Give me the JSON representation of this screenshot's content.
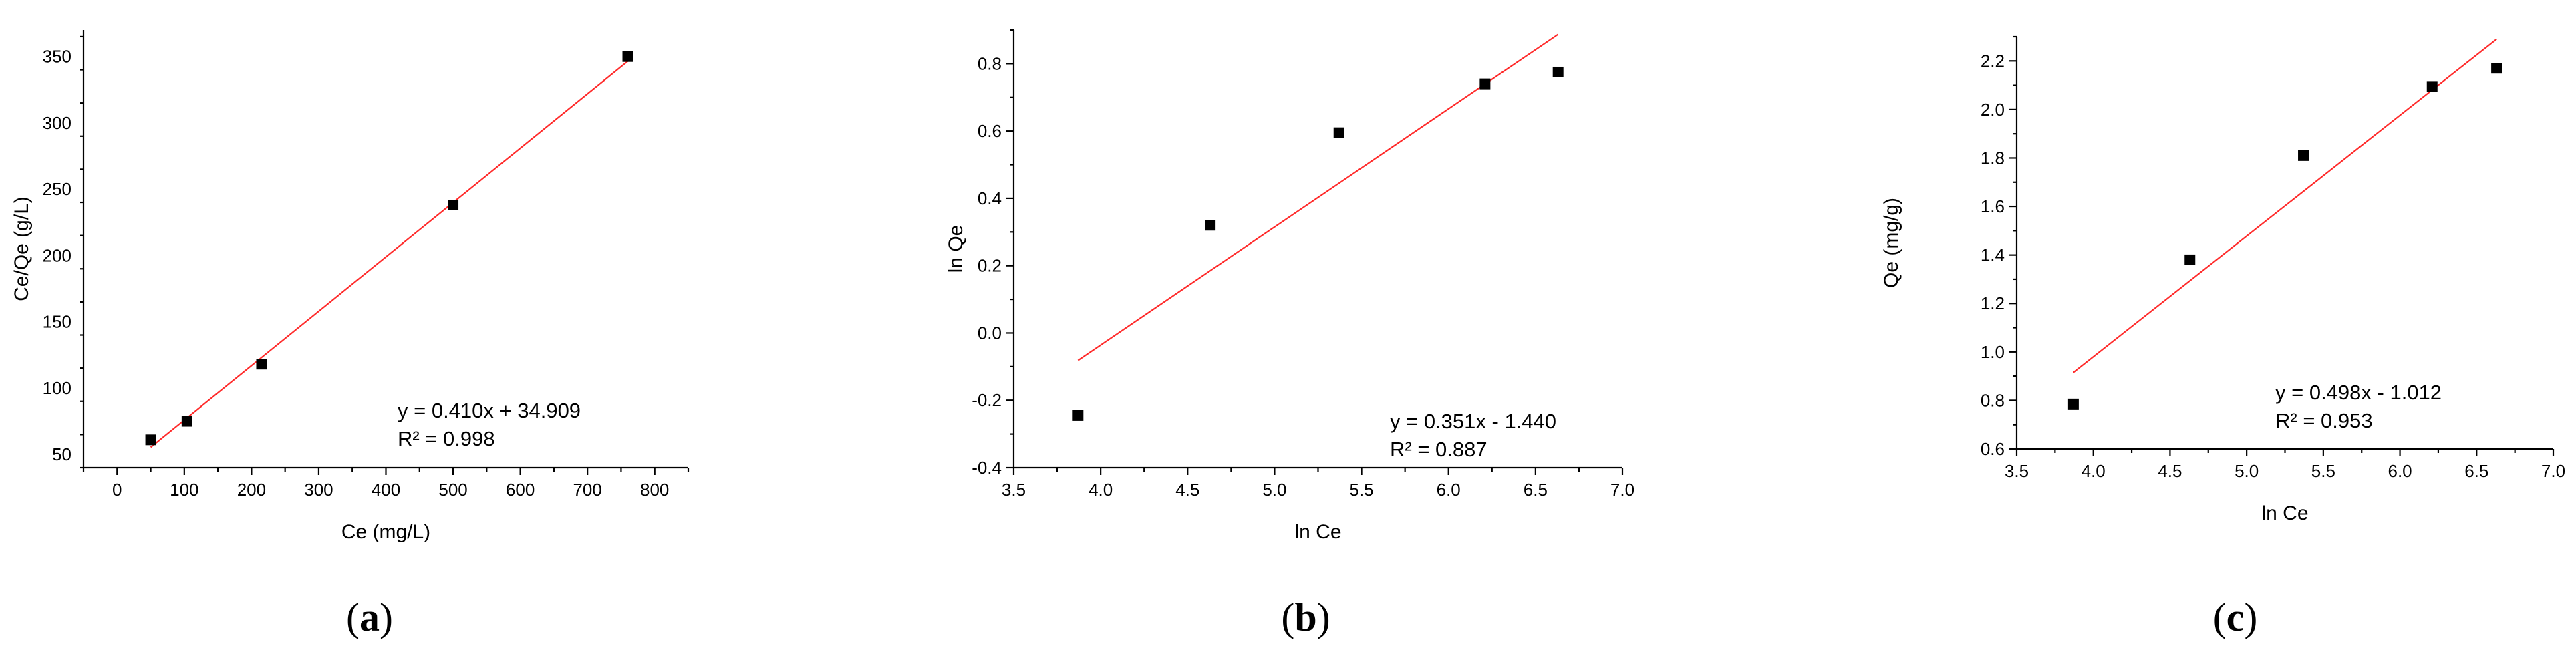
{
  "chart_data": [
    {
      "type": "scatter",
      "panel_label": "a",
      "xlabel": "Ce (mg/L)",
      "ylabel": "Ce/Qe (g/L)",
      "xlim": [
        -50,
        850
      ],
      "ylim": [
        40,
        370
      ],
      "xticks": [
        0,
        100,
        200,
        300,
        400,
        500,
        600,
        700,
        800
      ],
      "yticks": [
        50,
        100,
        150,
        200,
        250,
        300,
        350
      ],
      "points": [
        [
          50,
          61
        ],
        [
          104,
          75
        ],
        [
          215,
          118
        ],
        [
          500,
          238
        ],
        [
          760,
          350
        ]
      ],
      "fit": {
        "slope": 0.41,
        "intercept": 34.909,
        "x_range": [
          50,
          760
        ]
      },
      "equation": "y = 0.410x + 34.909",
      "r2": "R² = 0.998"
    },
    {
      "type": "scatter",
      "panel_label": "b",
      "xlabel": "ln Ce",
      "ylabel": "ln Qe",
      "xlim": [
        3.5,
        7.0
      ],
      "ylim": [
        -0.4,
        0.9
      ],
      "xticks": [
        3.5,
        4.0,
        4.5,
        5.0,
        5.5,
        6.0,
        6.5,
        7.0
      ],
      "yticks": [
        -0.4,
        -0.2,
        0.0,
        0.2,
        0.4,
        0.6,
        0.8
      ],
      "points": [
        [
          3.87,
          -0.245
        ],
        [
          4.63,
          0.32
        ],
        [
          5.37,
          0.595
        ],
        [
          6.21,
          0.74
        ],
        [
          6.63,
          0.775
        ]
      ],
      "fit": {
        "slope": 0.351,
        "intercept": -1.44,
        "x_range": [
          3.87,
          6.63
        ]
      },
      "equation": "y = 0.351x - 1.440",
      "r2": "R² = 0.887"
    },
    {
      "type": "scatter",
      "panel_label": "c",
      "xlabel": "ln Ce",
      "ylabel": "Qe (mg/g)",
      "xlim": [
        3.5,
        7.0
      ],
      "ylim": [
        0.6,
        2.3
      ],
      "xticks": [
        3.5,
        4.0,
        4.5,
        5.0,
        5.5,
        6.0,
        6.5,
        7.0
      ],
      "yticks": [
        0.6,
        0.8,
        1.0,
        1.2,
        1.4,
        1.6,
        1.8,
        2.0,
        2.2
      ],
      "points": [
        [
          3.87,
          0.785
        ],
        [
          4.63,
          1.38
        ],
        [
          5.37,
          1.81
        ],
        [
          6.21,
          2.095
        ],
        [
          6.63,
          2.17
        ]
      ],
      "fit": {
        "slope": 0.498,
        "intercept": -1.012,
        "x_range": [
          3.87,
          6.63
        ]
      },
      "equation": "y = 0.498x - 1.012",
      "r2": "R² = 0.953"
    }
  ]
}
